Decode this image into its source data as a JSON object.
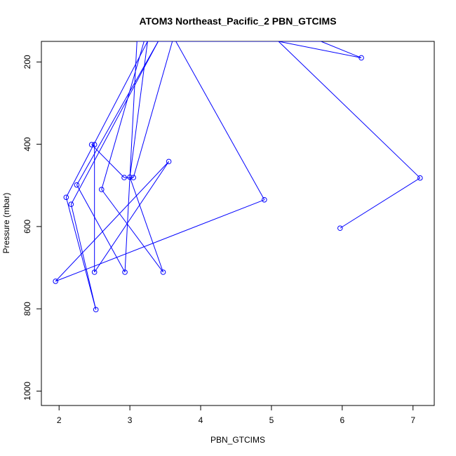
{
  "chart_data": {
    "type": "line",
    "title": "ATOM3 Northeast_Pacific_2 PBN_GTCIMS",
    "xlabel": "PBN_GTCIMS",
    "ylabel": "Pressure (mbar)",
    "xlim": [
      1.75,
      7.3
    ],
    "ylim": [
      1035,
      150
    ],
    "y_reversed": true,
    "grid": false,
    "x_ticks": [
      2,
      3,
      4,
      5,
      6,
      7
    ],
    "x_tick_labels": [
      "2",
      "3",
      "4",
      "5",
      "6",
      "7"
    ],
    "y_ticks": [
      200,
      400,
      600,
      800,
      1000
    ],
    "y_tick_labels": [
      "200",
      "400",
      "600",
      "800",
      "1000"
    ],
    "color": "#0000ff",
    "x": [
      3.65,
      4.9,
      1.95,
      3.55,
      2.5,
      2.5,
      2.46,
      2.92,
      3.05,
      3.6,
      3.1,
      2.93,
      2.25,
      3.4,
      2.17,
      2.52,
      2.1,
      3.25,
      3.0,
      3.47,
      2.6,
      3.2,
      5.7,
      6.27,
      5.1,
      7.1,
      5.97
    ],
    "y": [
      150,
      535,
      733,
      442,
      711,
      401,
      401,
      481,
      481,
      150,
      150,
      711,
      499,
      150,
      546,
      802,
      529,
      150,
      480,
      711,
      510,
      150,
      150,
      190,
      150,
      482,
      604
    ],
    "notes": ""
  }
}
